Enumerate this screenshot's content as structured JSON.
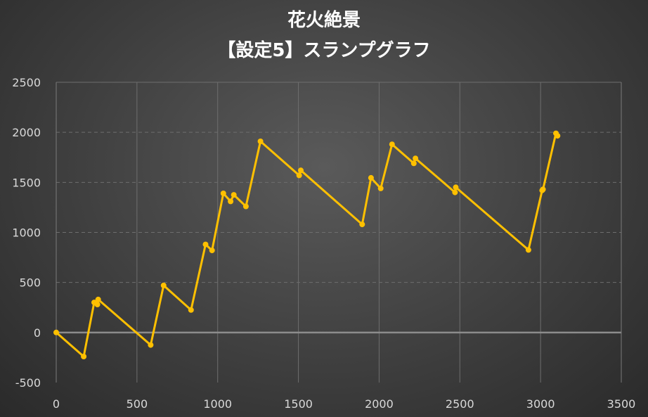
{
  "chart_data": {
    "type": "line",
    "title": "花火絶景",
    "subtitle": "【設定5】スランプグラフ",
    "xlabel": "",
    "ylabel": "",
    "xlim": [
      0,
      3500
    ],
    "ylim": [
      -500,
      2500
    ],
    "x_ticks": [
      0,
      500,
      1000,
      1500,
      2000,
      2500,
      3000,
      3500
    ],
    "y_ticks": [
      2500,
      2000,
      1500,
      1000,
      500,
      0,
      -500
    ],
    "grid": true,
    "legend": "none",
    "series": [
      {
        "color": "#FFC000",
        "points": [
          [
            0,
            0
          ],
          [
            170,
            -240
          ],
          [
            235,
            300
          ],
          [
            255,
            280
          ],
          [
            260,
            330
          ],
          [
            585,
            -125
          ],
          [
            665,
            470
          ],
          [
            835,
            225
          ],
          [
            925,
            880
          ],
          [
            965,
            820
          ],
          [
            1035,
            1390
          ],
          [
            1080,
            1310
          ],
          [
            1100,
            1375
          ],
          [
            1175,
            1260
          ],
          [
            1265,
            1910
          ],
          [
            1505,
            1570
          ],
          [
            1515,
            1620
          ],
          [
            1895,
            1080
          ],
          [
            1950,
            1545
          ],
          [
            2010,
            1440
          ],
          [
            2080,
            1880
          ],
          [
            2215,
            1690
          ],
          [
            2225,
            1740
          ],
          [
            2470,
            1400
          ],
          [
            2475,
            1450
          ],
          [
            2925,
            825
          ],
          [
            3010,
            1420
          ],
          [
            3015,
            1430
          ],
          [
            3095,
            1990
          ],
          [
            3105,
            1965
          ]
        ]
      }
    ]
  }
}
